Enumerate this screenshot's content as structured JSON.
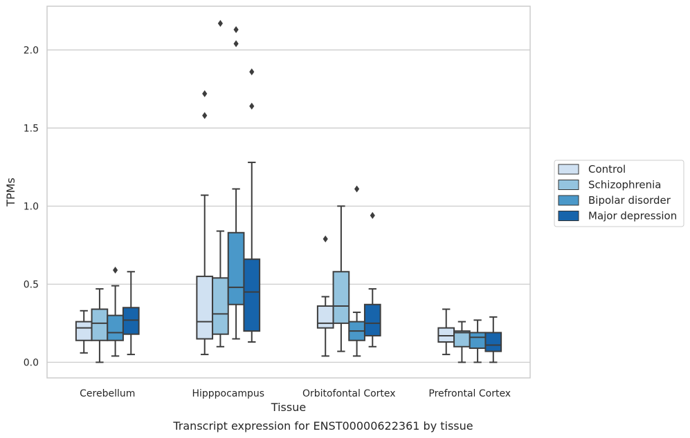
{
  "chart_data": {
    "type": "box",
    "xlabel": "Tissue",
    "ylabel": "TPMs",
    "caption": "Transcript expression for ENST00000622361 by tissue",
    "ylim": [
      -0.1,
      2.28
    ],
    "yticks": [
      0.0,
      0.5,
      1.0,
      1.5,
      2.0
    ],
    "ytick_labels": [
      "0.0",
      "0.5",
      "1.0",
      "1.5",
      "2.0"
    ],
    "grid": "horizontal",
    "legend_position": "right",
    "categories": [
      "Cerebellum",
      "Hipppocampus",
      "Orbitofontal Cortex",
      "Prefrontal Cortex"
    ],
    "series": [
      {
        "name": "Control",
        "color": "#d0e1f2",
        "boxes": [
          {
            "min": 0.06,
            "q1": 0.14,
            "median": 0.22,
            "q3": 0.26,
            "max": 0.33,
            "outliers": []
          },
          {
            "min": 0.05,
            "q1": 0.15,
            "median": 0.26,
            "q3": 0.55,
            "max": 1.07,
            "outliers": [
              1.58,
              1.72
            ]
          },
          {
            "min": 0.04,
            "q1": 0.22,
            "median": 0.25,
            "q3": 0.36,
            "max": 0.42,
            "outliers": [
              0.79
            ]
          },
          {
            "min": 0.05,
            "q1": 0.13,
            "median": 0.17,
            "q3": 0.22,
            "max": 0.34,
            "outliers": []
          }
        ]
      },
      {
        "name": "Schizophrenia",
        "color": "#94c4df",
        "boxes": [
          {
            "min": 0.0,
            "q1": 0.14,
            "median": 0.25,
            "q3": 0.34,
            "max": 0.47,
            "outliers": []
          },
          {
            "min": 0.1,
            "q1": 0.18,
            "median": 0.31,
            "q3": 0.54,
            "max": 0.84,
            "outliers": [
              2.17
            ]
          },
          {
            "min": 0.07,
            "q1": 0.25,
            "median": 0.36,
            "q3": 0.58,
            "max": 1.0,
            "outliers": []
          },
          {
            "min": 0.0,
            "q1": 0.1,
            "median": 0.19,
            "q3": 0.2,
            "max": 0.26,
            "outliers": []
          }
        ]
      },
      {
        "name": "Bipolar disorder",
        "color": "#4a98c9",
        "boxes": [
          {
            "min": 0.04,
            "q1": 0.14,
            "median": 0.19,
            "q3": 0.3,
            "max": 0.49,
            "outliers": [
              0.59
            ]
          },
          {
            "min": 0.15,
            "q1": 0.37,
            "median": 0.48,
            "q3": 0.83,
            "max": 1.11,
            "outliers": [
              2.04,
              2.13
            ]
          },
          {
            "min": 0.04,
            "q1": 0.14,
            "median": 0.2,
            "q3": 0.26,
            "max": 0.32,
            "outliers": [
              1.11
            ]
          },
          {
            "min": 0.0,
            "q1": 0.09,
            "median": 0.16,
            "q3": 0.19,
            "max": 0.27,
            "outliers": []
          }
        ]
      },
      {
        "name": "Major depression",
        "color": "#1764ab",
        "boxes": [
          {
            "min": 0.05,
            "q1": 0.18,
            "median": 0.27,
            "q3": 0.35,
            "max": 0.58,
            "outliers": []
          },
          {
            "min": 0.13,
            "q1": 0.2,
            "median": 0.45,
            "q3": 0.66,
            "max": 1.28,
            "outliers": [
              1.64,
              1.86
            ]
          },
          {
            "min": 0.1,
            "q1": 0.17,
            "median": 0.25,
            "q3": 0.37,
            "max": 0.47,
            "outliers": [
              0.94
            ]
          },
          {
            "min": 0.0,
            "q1": 0.07,
            "median": 0.11,
            "q3": 0.19,
            "max": 0.29,
            "outliers": []
          }
        ]
      }
    ]
  }
}
